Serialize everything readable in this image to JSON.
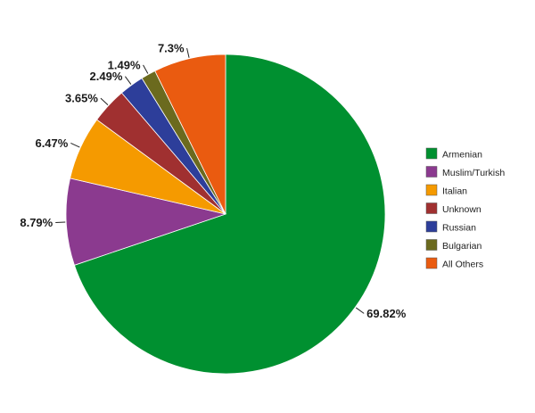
{
  "chart_data": {
    "type": "pie",
    "title": "",
    "start_angle_deg": 0,
    "direction": "clockwise",
    "legend_position": "right",
    "slices": [
      {
        "label": "Armenian",
        "value": 69.82,
        "value_label": "69.82%",
        "color": "#009030"
      },
      {
        "label": "Muslim/Turkish",
        "value": 8.79,
        "value_label": "8.79%",
        "color": "#8b3a8f"
      },
      {
        "label": "Italian",
        "value": 6.47,
        "value_label": "6.47%",
        "color": "#f59a00"
      },
      {
        "label": "Unknown",
        "value": 3.65,
        "value_label": "3.65%",
        "color": "#a03030"
      },
      {
        "label": "Russian",
        "value": 2.49,
        "value_label": "2.49%",
        "color": "#2d3e9a"
      },
      {
        "label": "Bulgarian",
        "value": 1.49,
        "value_label": "1.49%",
        "color": "#6b6a1e"
      },
      {
        "label": "All Others",
        "value": 7.3,
        "value_label": "7.3%",
        "color": "#ea5b10"
      }
    ]
  }
}
